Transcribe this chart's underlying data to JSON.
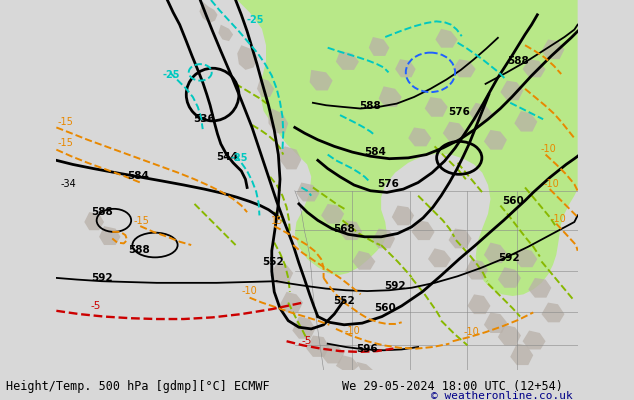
{
  "title_left": "Height/Temp. 500 hPa [gdmp][°C] ECMWF",
  "title_right": "We 29-05-2024 18:00 UTC (12+54)",
  "copyright": "© weatheronline.co.uk",
  "bg_color": "#d8d8d8",
  "map_bg_color": "#d8d8d8",
  "green_fill": "#b8e888",
  "gray_land": "#b8b0a8",
  "c_black": "#000000",
  "c_orange": "#e88800",
  "c_cyan": "#00c8c0",
  "c_red": "#cc0000",
  "c_yg": "#88b800",
  "c_blue": "#2060ff",
  "title_fs": 8.5,
  "copy_color": "#000088"
}
